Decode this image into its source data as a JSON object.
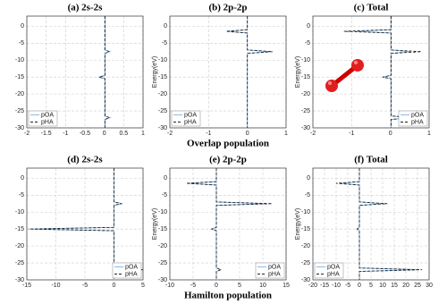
{
  "chart_data": [
    {
      "type": "line",
      "title": "(a) 2s-2s",
      "y": [
        3,
        -1,
        -1.5,
        -2,
        -7,
        -7.5,
        -8,
        -14.5,
        -15,
        -15.5,
        -26.5,
        -27,
        -27.5,
        -30
      ],
      "series": [
        {
          "name": "pOA",
          "color": "#7fb2e5",
          "dash": false,
          "values": [
            0.02,
            0.02,
            0.02,
            0.02,
            0.02,
            0.15,
            0.02,
            0.02,
            -0.15,
            0.02,
            0.02,
            0.15,
            0.02,
            0.02
          ]
        },
        {
          "name": "pHA",
          "color": "#222222",
          "dash": true,
          "values": [
            0.02,
            0.02,
            0.02,
            0.02,
            0.02,
            0.13,
            0.02,
            0.02,
            -0.13,
            0.02,
            0.02,
            0.13,
            0.02,
            0.02
          ]
        }
      ],
      "xlim": [
        -2,
        1
      ],
      "xticks": [
        -2,
        -1.5,
        -1,
        -0.5,
        0,
        0.5,
        1
      ],
      "ylim": [
        -30,
        3
      ],
      "yticks": [
        0,
        -5,
        -10,
        -15,
        -20,
        -25,
        -30
      ],
      "grid": true,
      "legend": "lower-left"
    },
    {
      "type": "line",
      "title": "(b) 2p-2p",
      "ylabel": "Energy(eV)",
      "y": [
        3,
        -1,
        -1.5,
        -2,
        -7,
        -7.5,
        -8,
        -14.5,
        -15,
        -15.5,
        -26.5,
        -27,
        -27.5,
        -30
      ],
      "series": [
        {
          "name": "pOA",
          "color": "#7fb2e5",
          "dash": false,
          "values": [
            0,
            0,
            -0.5,
            0,
            0,
            0.6,
            0,
            0,
            0,
            0,
            0,
            0,
            0,
            0
          ]
        },
        {
          "name": "pHA",
          "color": "#222222",
          "dash": true,
          "values": [
            0,
            0,
            -0.55,
            0,
            0,
            0.65,
            0,
            0,
            0,
            0,
            0,
            0,
            0,
            0
          ]
        }
      ],
      "xlim": [
        -2,
        1
      ],
      "xticks": [
        -2,
        -1,
        0,
        1
      ],
      "ylim": [
        -30,
        3
      ],
      "yticks": [
        0,
        -5,
        -10,
        -15,
        -20,
        -25,
        -30
      ],
      "grid": true,
      "legend": "lower-left",
      "xlabel": "Overlap population"
    },
    {
      "type": "line",
      "title": "(c) Total",
      "ylabel": "Energy(eV)",
      "y": [
        3,
        -1,
        -1.5,
        -2,
        -7,
        -7.5,
        -8,
        -14.5,
        -15,
        -15.5,
        -26.5,
        -27,
        -27.5,
        -30
      ],
      "series": [
        {
          "name": "pOA",
          "color": "#7fb2e5",
          "dash": false,
          "values": [
            0.02,
            0.02,
            -0.9,
            0.02,
            0.02,
            0.5,
            0.02,
            0.02,
            -0.2,
            0.02,
            0.02,
            0.5,
            0.02,
            0.02
          ]
        },
        {
          "name": "pHA",
          "color": "#222222",
          "dash": true,
          "values": [
            0.02,
            0.02,
            -1.2,
            0.02,
            0.02,
            0.8,
            0.02,
            0.02,
            -0.2,
            0.02,
            0.02,
            0.8,
            0.02,
            0.02
          ]
        }
      ],
      "xlim": [
        -2,
        1
      ],
      "xticks": [
        -2,
        -1,
        0,
        1
      ],
      "ylim": [
        -30,
        3
      ],
      "yticks": [
        0,
        -5,
        -10,
        -15,
        -20,
        -25,
        -30
      ],
      "grid": true,
      "legend": "lower-right"
    },
    {
      "type": "line",
      "title": "(d) 2s-2s",
      "y": [
        3,
        -1,
        -1.5,
        -2,
        -7,
        -7.5,
        -8,
        -14.5,
        -15,
        -15.5,
        -26.5,
        -27,
        -27.5,
        -30
      ],
      "series": [
        {
          "name": "pOA",
          "color": "#7fb2e5",
          "dash": false,
          "values": [
            0,
            0,
            0,
            0,
            0,
            1.5,
            0,
            0,
            -15,
            0,
            0,
            5,
            0,
            0
          ]
        },
        {
          "name": "pHA",
          "color": "#222222",
          "dash": true,
          "values": [
            0,
            0,
            0,
            0,
            0,
            1.3,
            0,
            0,
            -14.5,
            0,
            0,
            5,
            0,
            0
          ]
        }
      ],
      "xlim": [
        -15,
        5
      ],
      "xticks": [
        -15,
        -10,
        -5,
        0,
        5
      ],
      "ylim": [
        -30,
        3
      ],
      "yticks": [
        0,
        -5,
        -10,
        -15,
        -20,
        -25,
        -30
      ],
      "grid": true,
      "legend": "lower-right"
    },
    {
      "type": "line",
      "title": "(e) 2p-2p",
      "ylabel": "Energy(eV)",
      "y": [
        3,
        -1,
        -1.5,
        -2,
        -7,
        -7.5,
        -8,
        -14.5,
        -15,
        -15.5,
        -26.5,
        -27,
        -27.5,
        -30
      ],
      "series": [
        {
          "name": "pOA",
          "color": "#7fb2e5",
          "dash": false,
          "values": [
            0,
            0,
            -6,
            0,
            0,
            11,
            0,
            0,
            -1,
            0,
            0,
            1,
            0,
            0
          ]
        },
        {
          "name": "pHA",
          "color": "#222222",
          "dash": true,
          "values": [
            0,
            0,
            -6.5,
            0,
            0,
            12,
            0,
            0,
            -1,
            0,
            0,
            1,
            0,
            0
          ]
        }
      ],
      "xlim": [
        -10,
        15
      ],
      "xticks": [
        -10,
        -5,
        0,
        5,
        10,
        15
      ],
      "ylim": [
        -30,
        3
      ],
      "yticks": [
        0,
        -5,
        -10,
        -15,
        -20,
        -25,
        -30
      ],
      "grid": true,
      "legend": "lower-right",
      "xlabel": "Hamilton population"
    },
    {
      "type": "line",
      "title": "(f) Total",
      "ylabel": "Energy(eV)",
      "y": [
        3,
        -1,
        -1.5,
        -2,
        -7,
        -7.5,
        -8,
        -14.5,
        -15,
        -15.5,
        -26.5,
        -27,
        -27.5,
        -30
      ],
      "series": [
        {
          "name": "pOA",
          "color": "#7fb2e5",
          "dash": false,
          "values": [
            0,
            0,
            -8,
            0,
            0,
            10,
            0,
            0,
            -1,
            0,
            0,
            25,
            0,
            0
          ]
        },
        {
          "name": "pHA",
          "color": "#222222",
          "dash": true,
          "values": [
            0,
            0,
            -10,
            0,
            0,
            12,
            0,
            0,
            -1,
            0,
            0,
            27,
            0,
            0
          ]
        }
      ],
      "xlim": [
        -20,
        30
      ],
      "xticks": [
        -20,
        -15,
        -10,
        -5,
        0,
        5,
        10,
        15,
        20,
        25,
        30
      ],
      "ylim": [
        -30,
        3
      ],
      "yticks": [
        0,
        -5,
        -10,
        -15,
        -20,
        -25,
        -30
      ],
      "grid": true,
      "legend": "lower-left"
    }
  ]
}
